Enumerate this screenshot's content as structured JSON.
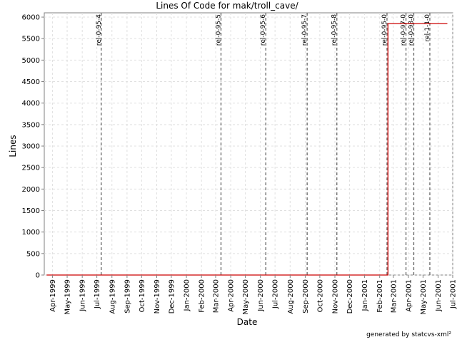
{
  "chart_data": {
    "type": "line",
    "title": "Lines Of Code for mak/troll_cave/",
    "xlabel": "Date",
    "ylabel": "Lines",
    "ylim": [
      0,
      6100
    ],
    "xlim": [
      "1999-03-15",
      "2001-07-01"
    ],
    "y_ticks": [
      0,
      500,
      1000,
      1500,
      2000,
      2500,
      3000,
      3500,
      4000,
      4500,
      5000,
      5500,
      6000
    ],
    "x_ticks": [
      {
        "date": "1999-04-01",
        "label": "Apr-1999"
      },
      {
        "date": "1999-05-01",
        "label": "May-1999"
      },
      {
        "date": "1999-06-01",
        "label": "Jun-1999"
      },
      {
        "date": "1999-07-01",
        "label": "Jul-1999"
      },
      {
        "date": "1999-08-01",
        "label": "Aug-1999"
      },
      {
        "date": "1999-09-01",
        "label": "Sep-1999"
      },
      {
        "date": "1999-10-01",
        "label": "Oct-1999"
      },
      {
        "date": "1999-11-01",
        "label": "Nov-1999"
      },
      {
        "date": "1999-12-01",
        "label": "Dec-1999"
      },
      {
        "date": "2000-01-01",
        "label": "Jan-2000"
      },
      {
        "date": "2000-02-01",
        "label": "Feb-2000"
      },
      {
        "date": "2000-03-01",
        "label": "Mar-2000"
      },
      {
        "date": "2000-04-01",
        "label": "Apr-2000"
      },
      {
        "date": "2000-05-01",
        "label": "May-2000"
      },
      {
        "date": "2000-06-01",
        "label": "Jun-2000"
      },
      {
        "date": "2000-07-01",
        "label": "Jul-2000"
      },
      {
        "date": "2000-08-01",
        "label": "Aug-2000"
      },
      {
        "date": "2000-09-01",
        "label": "Sep-2000"
      },
      {
        "date": "2000-10-01",
        "label": "Oct-2000"
      },
      {
        "date": "2000-11-01",
        "label": "Nov-2000"
      },
      {
        "date": "2000-12-01",
        "label": "Dec-2000"
      },
      {
        "date": "2001-01-01",
        "label": "Jan-2001"
      },
      {
        "date": "2001-02-01",
        "label": "Feb-2001"
      },
      {
        "date": "2001-03-01",
        "label": "Mar-2001"
      },
      {
        "date": "2001-04-01",
        "label": "Apr-2001"
      },
      {
        "date": "2001-05-01",
        "label": "May-2001"
      },
      {
        "date": "2001-06-01",
        "label": "Jun-2001"
      },
      {
        "date": "2001-07-01",
        "label": "Jul-2001"
      }
    ],
    "series": [
      {
        "color": "#cc0000",
        "points": [
          {
            "x": "1999-03-20",
            "y": 0
          },
          {
            "x": "2001-02-18",
            "y": 0
          },
          {
            "x": "2001-02-18",
            "y": 5850
          },
          {
            "x": "2001-06-20",
            "y": 5850
          }
        ]
      }
    ],
    "tags": [
      {
        "date": "1999-07-10",
        "label": "rel-0-95-4"
      },
      {
        "date": "2000-03-12",
        "label": "rel-0-95-5"
      },
      {
        "date": "2000-06-12",
        "label": "rel-0-95-6"
      },
      {
        "date": "2000-09-05",
        "label": "rel-0-95-7"
      },
      {
        "date": "2000-11-05",
        "label": "rel-0-95-8"
      },
      {
        "date": "2001-02-16",
        "label": "rel-0-95-0"
      },
      {
        "date": "2001-03-27",
        "label": "rel-0-97-0"
      },
      {
        "date": "2001-04-12",
        "label": "rel-0-98-0"
      },
      {
        "date": "2001-05-15",
        "label": "rel-1-1-0"
      }
    ],
    "grid": true,
    "colors": {
      "line": "#cc0000",
      "grid": "#e0e0e0",
      "tag": "#666666",
      "axis": "#808080"
    }
  },
  "footer": {
    "generated_by": "generated by statcvs-xml²"
  }
}
